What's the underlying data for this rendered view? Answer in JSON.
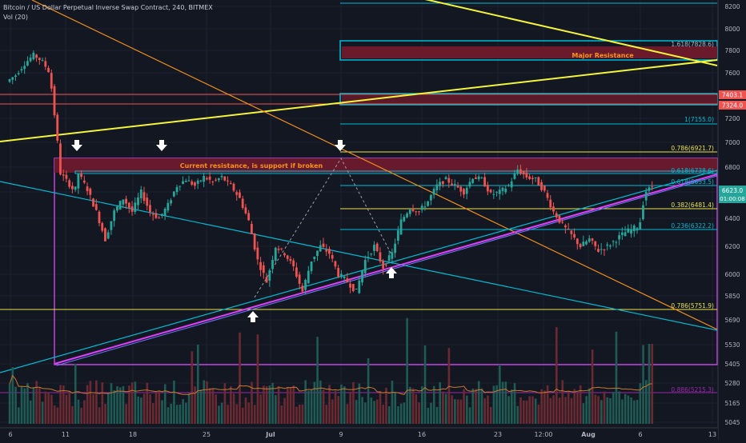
{
  "header": {
    "title": "Bitcoin / US Dollar Perpetual Inverse Swap Contract, 240, BITMEX",
    "volume_label": "Vol (20)"
  },
  "chart_data": {
    "type": "candlestick",
    "symbol": "XBTUSD",
    "timeframe": "240",
    "exchange": "BITMEX",
    "price_axis": {
      "ticks": [
        8200,
        8000,
        7800,
        7600,
        7400,
        7200,
        7000,
        6800,
        6600,
        6400,
        6200,
        6000,
        5850,
        5690,
        5530,
        5405,
        5280,
        5165,
        5045
      ]
    },
    "time_axis": {
      "labels": [
        "6",
        "11",
        "18",
        "25",
        "Jul",
        "9",
        "16",
        "23",
        "12:00",
        "Aug",
        "6",
        "13"
      ]
    },
    "last_price": {
      "value": "6623.0",
      "countdown": "01:00:08",
      "color": "#26a69a"
    },
    "price_tags": [
      {
        "value": "7403.1",
        "color": "#ef5350"
      },
      {
        "value": "7324.0",
        "color": "#ef5350"
      }
    ],
    "fib_labels": [
      {
        "text": "1.618(7828.6)",
        "price": 7828.6,
        "color": "#aeb4c2"
      },
      {
        "text": "1(7155.0)",
        "price": 7155.0,
        "color": "#00bcd4"
      },
      {
        "text": "0.786(6921.7)",
        "price": 6921.7,
        "color": "#e8e24a"
      },
      {
        "text": "0.618(6738.6)",
        "price": 6738.6,
        "color": "#00bcd4"
      },
      {
        "text": "0.618(6653.5)",
        "price": 6653.5,
        "color": "#00bcd4"
      },
      {
        "text": "0.382(6481.4)",
        "price": 6481.4,
        "color": "#e8e24a"
      },
      {
        "text": "0.236(6322.2)",
        "price": 6322.2,
        "color": "#00bcd4"
      },
      {
        "text": "0.786(5751.9)",
        "price": 5751.9,
        "color": "#e8e24a"
      },
      {
        "text": "0.886(5215.3)",
        "price": 5215.3,
        "color": "#9c27b0"
      }
    ],
    "annotations": {
      "major_resistance": "Major Resistance",
      "current_resistance": "Current resistance,  is support if broken"
    }
  }
}
